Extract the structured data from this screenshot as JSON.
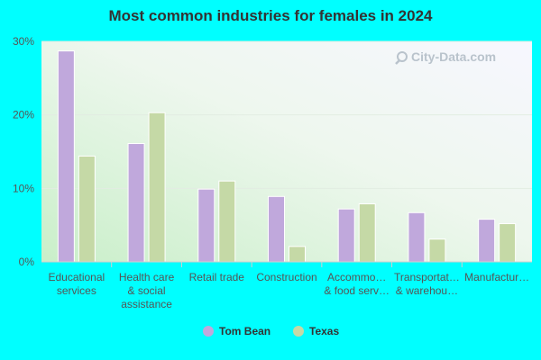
{
  "chart_data": {
    "type": "bar",
    "title": "Most common industries for females in 2024",
    "xlabel": "",
    "ylabel": "",
    "ylim": [
      0,
      30
    ],
    "yticks": [
      "0%",
      "10%",
      "20%",
      "30%"
    ],
    "categories": [
      [
        "Educational",
        "services"
      ],
      [
        "Health care",
        "& social",
        "assistance"
      ],
      [
        "Retail trade"
      ],
      [
        "Construction"
      ],
      [
        "Accommo…",
        "& food serv…"
      ],
      [
        "Transportat…",
        "& warehou…"
      ],
      [
        "Manufactur…"
      ]
    ],
    "series": [
      {
        "name": "Tom Bean",
        "color": "#c0a8dc",
        "values": [
          28.7,
          16.1,
          9.9,
          8.9,
          7.2,
          6.7,
          5.8
        ]
      },
      {
        "name": "Texas",
        "color": "#c5d9a6",
        "values": [
          14.4,
          20.3,
          11.0,
          2.1,
          7.9,
          3.1,
          5.2
        ]
      }
    ],
    "legend_position": "bottom-center",
    "grid": true
  },
  "watermark": {
    "text": "City-Data.com",
    "icon": "magnifier-icon"
  }
}
